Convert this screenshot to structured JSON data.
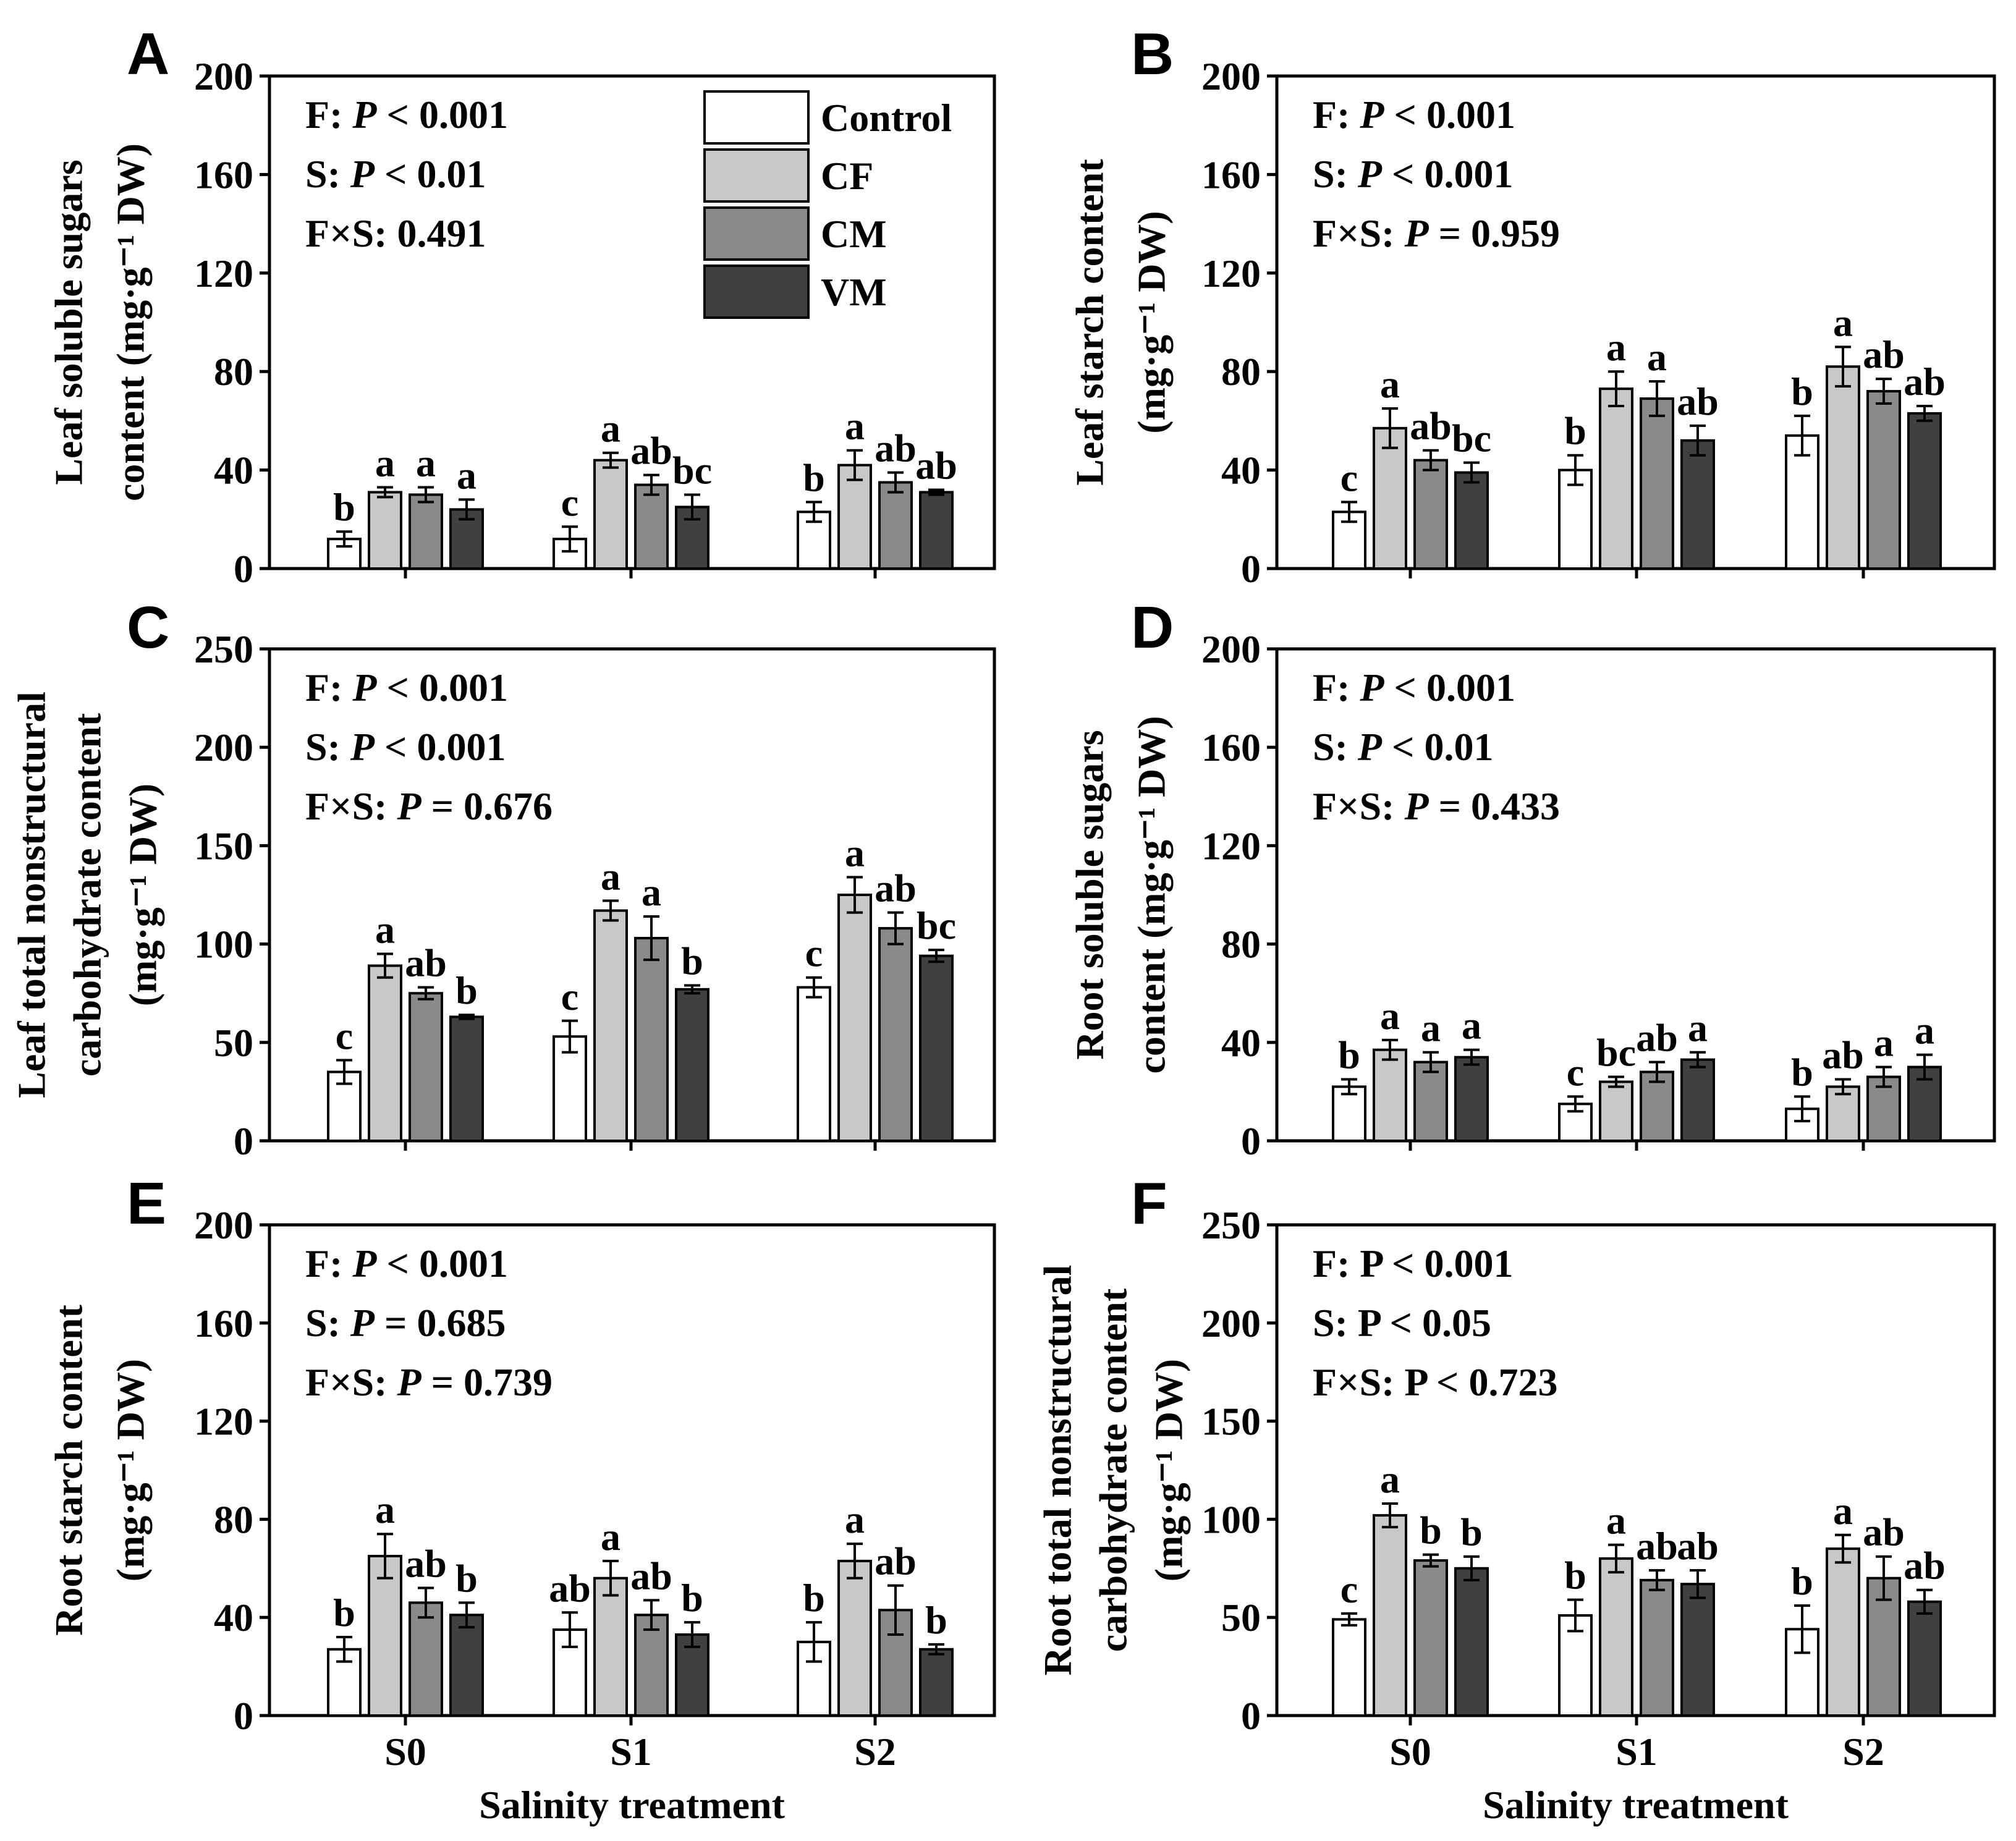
{
  "legend": {
    "entries": [
      {
        "name": "Control",
        "color": "#ffffff"
      },
      {
        "name": "CF",
        "color": "#c8c8c8"
      },
      {
        "name": "CM",
        "color": "#8a8a8a"
      },
      {
        "name": "VM",
        "color": "#404040"
      }
    ]
  },
  "chart_data": [
    {
      "type": "bar",
      "letter": "A",
      "ylabel_lines": [
        "Leaf soluble sugars",
        "content (mg·g⁻¹ DW)"
      ],
      "xlabel": "",
      "ylim": [
        0,
        200
      ],
      "yticks": [
        0,
        40,
        80,
        120,
        160,
        200
      ],
      "categories": [
        "S0",
        "S1",
        "S2"
      ],
      "show_xticklabels": false,
      "stats": [
        {
          "prefix": "F: ",
          "italic": "P",
          "suffix": " < 0.001"
        },
        {
          "prefix": "S: ",
          "italic": "P",
          "suffix": " < 0.01"
        },
        {
          "prefix": "F×S: 0.491",
          "italic": "",
          "suffix": ""
        }
      ],
      "series": [
        {
          "name": "Control",
          "values": [
            12,
            12,
            23
          ],
          "errors": [
            3,
            5,
            4
          ],
          "letters": [
            "b",
            "c",
            "b"
          ]
        },
        {
          "name": "CF",
          "values": [
            31,
            44,
            42
          ],
          "errors": [
            2,
            3,
            6
          ],
          "letters": [
            "a",
            "a",
            "a"
          ]
        },
        {
          "name": "CM",
          "values": [
            30,
            34,
            35
          ],
          "errors": [
            3,
            4,
            4
          ],
          "letters": [
            "a",
            "ab",
            "ab"
          ]
        },
        {
          "name": "VM",
          "values": [
            24,
            25,
            31
          ],
          "errors": [
            4,
            5,
            1
          ],
          "letters": [
            "a",
            "bc",
            "ab"
          ]
        }
      ]
    },
    {
      "type": "bar",
      "letter": "B",
      "ylabel_lines": [
        "Leaf starch content",
        "(mg·g⁻¹ DW)"
      ],
      "xlabel": "",
      "ylim": [
        0,
        200
      ],
      "yticks": [
        0,
        40,
        80,
        120,
        160,
        200
      ],
      "categories": [
        "S0",
        "S1",
        "S2"
      ],
      "show_xticklabels": false,
      "stats": [
        {
          "prefix": "F: ",
          "italic": "P",
          "suffix": " < 0.001"
        },
        {
          "prefix": "S: ",
          "italic": "P",
          "suffix": " < 0.001"
        },
        {
          "prefix": "F×S: ",
          "italic": "P",
          "suffix": " = 0.959"
        }
      ],
      "series": [
        {
          "name": "Control",
          "values": [
            23,
            40,
            54
          ],
          "errors": [
            4,
            6,
            8
          ],
          "letters": [
            "c",
            "b",
            "b"
          ]
        },
        {
          "name": "CF",
          "values": [
            57,
            73,
            82
          ],
          "errors": [
            8,
            7,
            8
          ],
          "letters": [
            "a",
            "a",
            "a"
          ]
        },
        {
          "name": "CM",
          "values": [
            44,
            69,
            72
          ],
          "errors": [
            4,
            7,
            5
          ],
          "letters": [
            "ab",
            "a",
            "ab"
          ]
        },
        {
          "name": "VM",
          "values": [
            39,
            52,
            63
          ],
          "errors": [
            4,
            6,
            3
          ],
          "letters": [
            "bc",
            "ab",
            "ab"
          ]
        }
      ]
    },
    {
      "type": "bar",
      "letter": "C",
      "ylabel_lines": [
        "Leaf total nonstructural",
        "carbohydrate content",
        "(mg·g⁻¹ DW)"
      ],
      "xlabel": "",
      "ylim": [
        0,
        250
      ],
      "yticks": [
        0,
        50,
        100,
        150,
        200,
        250
      ],
      "categories": [
        "S0",
        "S1",
        "S2"
      ],
      "show_xticklabels": false,
      "stats": [
        {
          "prefix": "F: ",
          "italic": "P",
          "suffix": " < 0.001"
        },
        {
          "prefix": "S: ",
          "italic": "P",
          "suffix": " < 0.001"
        },
        {
          "prefix": "F×S: ",
          "italic": "P",
          "suffix": " = 0.676"
        }
      ],
      "series": [
        {
          "name": "Control",
          "values": [
            35,
            53,
            78
          ],
          "errors": [
            6,
            8,
            5
          ],
          "letters": [
            "c",
            "c",
            "c"
          ]
        },
        {
          "name": "CF",
          "values": [
            89,
            117,
            125
          ],
          "errors": [
            6,
            5,
            9
          ],
          "letters": [
            "a",
            "a",
            "a"
          ]
        },
        {
          "name": "CM",
          "values": [
            75,
            103,
            108
          ],
          "errors": [
            3,
            11,
            8
          ],
          "letters": [
            "ab",
            "a",
            "ab"
          ]
        },
        {
          "name": "VM",
          "values": [
            63,
            77,
            94
          ],
          "errors": [
            1,
            2,
            3
          ],
          "letters": [
            "b",
            "b",
            "bc"
          ]
        }
      ]
    },
    {
      "type": "bar",
      "letter": "D",
      "ylabel_lines": [
        "Root soluble sugars",
        "content (mg·g⁻¹ DW)"
      ],
      "xlabel": "",
      "ylim": [
        0,
        200
      ],
      "yticks": [
        0,
        40,
        80,
        120,
        160,
        200
      ],
      "categories": [
        "S0",
        "S1",
        "S2"
      ],
      "show_xticklabels": false,
      "stats": [
        {
          "prefix": "F: ",
          "italic": "P",
          "suffix": " < 0.001"
        },
        {
          "prefix": "S: ",
          "italic": "P",
          "suffix": " < 0.01"
        },
        {
          "prefix": "F×S: ",
          "italic": "P",
          "suffix": " = 0.433"
        }
      ],
      "series": [
        {
          "name": "Control",
          "values": [
            22,
            15,
            13
          ],
          "errors": [
            3,
            3,
            5
          ],
          "letters": [
            "b",
            "c",
            "b"
          ]
        },
        {
          "name": "CF",
          "values": [
            37,
            24,
            22
          ],
          "errors": [
            4,
            2,
            3
          ],
          "letters": [
            "a",
            "bc",
            "ab"
          ]
        },
        {
          "name": "CM",
          "values": [
            32,
            28,
            26
          ],
          "errors": [
            4,
            4,
            4
          ],
          "letters": [
            "a",
            "ab",
            "a"
          ]
        },
        {
          "name": "VM",
          "values": [
            34,
            33,
            30
          ],
          "errors": [
            3,
            3,
            5
          ],
          "letters": [
            "a",
            "a",
            "a"
          ]
        }
      ]
    },
    {
      "type": "bar",
      "letter": "E",
      "ylabel_lines": [
        "Root starch content",
        "(mg·g⁻¹ DW)"
      ],
      "xlabel": "Salinity treatment",
      "ylim": [
        0,
        200
      ],
      "yticks": [
        0,
        40,
        80,
        120,
        160,
        200
      ],
      "categories": [
        "S0",
        "S1",
        "S2"
      ],
      "show_xticklabels": true,
      "stats": [
        {
          "prefix": "F: ",
          "italic": "P",
          "suffix": " < 0.001"
        },
        {
          "prefix": "S: ",
          "italic": "P",
          "suffix": " = 0.685"
        },
        {
          "prefix": "F×S: ",
          "italic": "P",
          "suffix": " = 0.739"
        }
      ],
      "series": [
        {
          "name": "Control",
          "values": [
            27,
            35,
            30
          ],
          "errors": [
            5,
            7,
            8
          ],
          "letters": [
            "b",
            "ab",
            "b"
          ]
        },
        {
          "name": "CF",
          "values": [
            65,
            56,
            63
          ],
          "errors": [
            9,
            7,
            7
          ],
          "letters": [
            "a",
            "a",
            "a"
          ]
        },
        {
          "name": "CM",
          "values": [
            46,
            41,
            43
          ],
          "errors": [
            6,
            6,
            10
          ],
          "letters": [
            "ab",
            "ab",
            "ab"
          ]
        },
        {
          "name": "VM",
          "values": [
            41,
            33,
            27
          ],
          "errors": [
            5,
            5,
            2
          ],
          "letters": [
            "b",
            "b",
            "b"
          ]
        }
      ]
    },
    {
      "type": "bar",
      "letter": "F",
      "ylabel_lines": [
        "Root total nonstructural",
        "carbohydrate content",
        "(mg·g⁻¹ DW)"
      ],
      "xlabel": "Salinity treatment",
      "ylim": [
        0,
        250
      ],
      "yticks": [
        0,
        50,
        100,
        150,
        200,
        250
      ],
      "categories": [
        "S0",
        "S1",
        "S2"
      ],
      "show_xticklabels": true,
      "stats": [
        {
          "prefix": "F: P < 0.001",
          "italic": "",
          "suffix": ""
        },
        {
          "prefix": "S: P < 0.05",
          "italic": "",
          "suffix": ""
        },
        {
          "prefix": "F×S: P < 0.723",
          "italic": "",
          "suffix": ""
        }
      ],
      "series": [
        {
          "name": "Control",
          "values": [
            49,
            51,
            44
          ],
          "errors": [
            3,
            8,
            12
          ],
          "letters": [
            "c",
            "b",
            "b"
          ]
        },
        {
          "name": "CF",
          "values": [
            102,
            80,
            85
          ],
          "errors": [
            6,
            7,
            7
          ],
          "letters": [
            "a",
            "a",
            "a"
          ]
        },
        {
          "name": "CM",
          "values": [
            79,
            69,
            70
          ],
          "errors": [
            3,
            5,
            11
          ],
          "letters": [
            "b",
            "ab",
            "ab"
          ]
        },
        {
          "name": "VM",
          "values": [
            75,
            67,
            58
          ],
          "errors": [
            6,
            7,
            6
          ],
          "letters": [
            "b",
            "ab",
            "ab"
          ]
        }
      ]
    }
  ]
}
